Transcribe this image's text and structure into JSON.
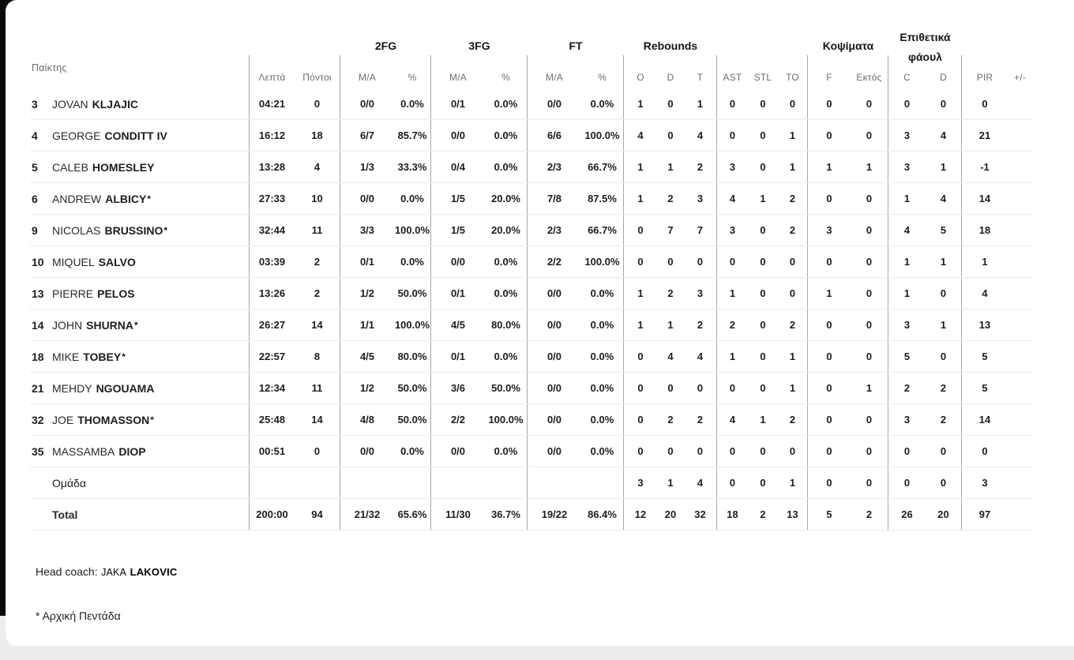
{
  "colors": {
    "card_bg": "#ffffff",
    "page_bg": "#ededed",
    "left_panel": "#0a0a0a",
    "header_text": "#6d6d6d",
    "data_text": "#1d1d1d",
    "row_divider": "#eaeaea",
    "column_separator": "#a6a6a6"
  },
  "table": {
    "groups": {
      "fg2": "2FG",
      "fg3": "3FG",
      "ft": "FT",
      "rebounds": "Rebounds",
      "blocks": "Κοψίματα",
      "fouls_line1": "Επιθετικά",
      "fouls_line2": "φάουλ"
    },
    "subheaders": {
      "player": "Παίκτης",
      "min": "Λεπτά",
      "pts": "Πόντοι",
      "ma": "M/A",
      "pct": "%",
      "reb_o": "O",
      "reb_d": "D",
      "reb_t": "T",
      "ast": "AST",
      "stl": "STL",
      "to": "TO",
      "blk_f": "F",
      "blk_against": "Εκτός",
      "foul_c": "C",
      "foul_d": "D",
      "pir": "PIR",
      "plusminus": "+/-"
    },
    "rows": [
      {
        "type": "player",
        "num": "3",
        "first": "JOVAN",
        "last": "KLJAJIC",
        "star": false,
        "min": "04:21",
        "pts": "0",
        "fg2": "0/0",
        "fg2p": "0.0%",
        "fg3": "0/1",
        "fg3p": "0.0%",
        "ft": "0/0",
        "ftp": "0.0%",
        "ro": "1",
        "rd": "0",
        "rt": "1",
        "ast": "0",
        "stl": "0",
        "to": "0",
        "f": "0",
        "ektos": "0",
        "c": "0",
        "d": "0",
        "pir": "0",
        "pm": ""
      },
      {
        "type": "player",
        "num": "4",
        "first": "GEORGE",
        "last": "CONDITT IV",
        "star": false,
        "min": "16:12",
        "pts": "18",
        "fg2": "6/7",
        "fg2p": "85.7%",
        "fg3": "0/0",
        "fg3p": "0.0%",
        "ft": "6/6",
        "ftp": "100.0%",
        "ro": "4",
        "rd": "0",
        "rt": "4",
        "ast": "0",
        "stl": "0",
        "to": "1",
        "f": "0",
        "ektos": "0",
        "c": "3",
        "d": "4",
        "pir": "21",
        "pm": ""
      },
      {
        "type": "player",
        "num": "5",
        "first": "CALEB",
        "last": "HOMESLEY",
        "star": false,
        "min": "13:28",
        "pts": "4",
        "fg2": "1/3",
        "fg2p": "33.3%",
        "fg3": "0/4",
        "fg3p": "0.0%",
        "ft": "2/3",
        "ftp": "66.7%",
        "ro": "1",
        "rd": "1",
        "rt": "2",
        "ast": "3",
        "stl": "0",
        "to": "1",
        "f": "1",
        "ektos": "1",
        "c": "3",
        "d": "1",
        "pir": "-1",
        "pm": ""
      },
      {
        "type": "player",
        "num": "6",
        "first": "ANDREW",
        "last": "ALBICY",
        "star": true,
        "min": "27:33",
        "pts": "10",
        "fg2": "0/0",
        "fg2p": "0.0%",
        "fg3": "1/5",
        "fg3p": "20.0%",
        "ft": "7/8",
        "ftp": "87.5%",
        "ro": "1",
        "rd": "2",
        "rt": "3",
        "ast": "4",
        "stl": "1",
        "to": "2",
        "f": "0",
        "ektos": "0",
        "c": "1",
        "d": "4",
        "pir": "14",
        "pm": ""
      },
      {
        "type": "player",
        "num": "9",
        "first": "NICOLAS",
        "last": "BRUSSINO",
        "star": true,
        "min": "32:44",
        "pts": "11",
        "fg2": "3/3",
        "fg2p": "100.0%",
        "fg3": "1/5",
        "fg3p": "20.0%",
        "ft": "2/3",
        "ftp": "66.7%",
        "ro": "0",
        "rd": "7",
        "rt": "7",
        "ast": "3",
        "stl": "0",
        "to": "2",
        "f": "3",
        "ektos": "0",
        "c": "4",
        "d": "5",
        "pir": "18",
        "pm": ""
      },
      {
        "type": "player",
        "num": "10",
        "first": "MIQUEL",
        "last": "SALVO",
        "star": false,
        "min": "03:39",
        "pts": "2",
        "fg2": "0/1",
        "fg2p": "0.0%",
        "fg3": "0/0",
        "fg3p": "0.0%",
        "ft": "2/2",
        "ftp": "100.0%",
        "ro": "0",
        "rd": "0",
        "rt": "0",
        "ast": "0",
        "stl": "0",
        "to": "0",
        "f": "0",
        "ektos": "0",
        "c": "1",
        "d": "1",
        "pir": "1",
        "pm": ""
      },
      {
        "type": "player",
        "num": "13",
        "first": "PIERRE",
        "last": "PELOS",
        "star": false,
        "min": "13:26",
        "pts": "2",
        "fg2": "1/2",
        "fg2p": "50.0%",
        "fg3": "0/1",
        "fg3p": "0.0%",
        "ft": "0/0",
        "ftp": "0.0%",
        "ro": "1",
        "rd": "2",
        "rt": "3",
        "ast": "1",
        "stl": "0",
        "to": "0",
        "f": "1",
        "ektos": "0",
        "c": "1",
        "d": "0",
        "pir": "4",
        "pm": ""
      },
      {
        "type": "player",
        "num": "14",
        "first": "JOHN",
        "last": "SHURNA",
        "star": true,
        "min": "26:27",
        "pts": "14",
        "fg2": "1/1",
        "fg2p": "100.0%",
        "fg3": "4/5",
        "fg3p": "80.0%",
        "ft": "0/0",
        "ftp": "0.0%",
        "ro": "1",
        "rd": "1",
        "rt": "2",
        "ast": "2",
        "stl": "0",
        "to": "2",
        "f": "0",
        "ektos": "0",
        "c": "3",
        "d": "1",
        "pir": "13",
        "pm": ""
      },
      {
        "type": "player",
        "num": "18",
        "first": "MIKE",
        "last": "TOBEY",
        "star": true,
        "min": "22:57",
        "pts": "8",
        "fg2": "4/5",
        "fg2p": "80.0%",
        "fg3": "0/1",
        "fg3p": "0.0%",
        "ft": "0/0",
        "ftp": "0.0%",
        "ro": "0",
        "rd": "4",
        "rt": "4",
        "ast": "1",
        "stl": "0",
        "to": "1",
        "f": "0",
        "ektos": "0",
        "c": "5",
        "d": "0",
        "pir": "5",
        "pm": ""
      },
      {
        "type": "player",
        "num": "21",
        "first": "MEHDY",
        "last": "NGOUAMA",
        "star": false,
        "min": "12:34",
        "pts": "11",
        "fg2": "1/2",
        "fg2p": "50.0%",
        "fg3": "3/6",
        "fg3p": "50.0%",
        "ft": "0/0",
        "ftp": "0.0%",
        "ro": "0",
        "rd": "0",
        "rt": "0",
        "ast": "0",
        "stl": "0",
        "to": "1",
        "f": "0",
        "ektos": "1",
        "c": "2",
        "d": "2",
        "pir": "5",
        "pm": ""
      },
      {
        "type": "player",
        "num": "32",
        "first": "JOE",
        "last": "THOMASSON",
        "star": true,
        "min": "25:48",
        "pts": "14",
        "fg2": "4/8",
        "fg2p": "50.0%",
        "fg3": "2/2",
        "fg3p": "100.0%",
        "ft": "0/0",
        "ftp": "0.0%",
        "ro": "0",
        "rd": "2",
        "rt": "2",
        "ast": "4",
        "stl": "1",
        "to": "2",
        "f": "0",
        "ektos": "0",
        "c": "3",
        "d": "2",
        "pir": "14",
        "pm": ""
      },
      {
        "type": "player",
        "num": "35",
        "first": "MASSAMBA",
        "last": "DIOP",
        "star": false,
        "min": "00:51",
        "pts": "0",
        "fg2": "0/0",
        "fg2p": "0.0%",
        "fg3": "0/0",
        "fg3p": "0.0%",
        "ft": "0/0",
        "ftp": "0.0%",
        "ro": "0",
        "rd": "0",
        "rt": "0",
        "ast": "0",
        "stl": "0",
        "to": "0",
        "f": "0",
        "ektos": "0",
        "c": "0",
        "d": "0",
        "pir": "0",
        "pm": ""
      },
      {
        "type": "team",
        "label": "Ομάδα",
        "min": "",
        "pts": "",
        "fg2": "",
        "fg2p": "",
        "fg3": "",
        "fg3p": "",
        "ft": "",
        "ftp": "",
        "ro": "3",
        "rd": "1",
        "rt": "4",
        "ast": "0",
        "stl": "0",
        "to": "1",
        "f": "0",
        "ektos": "0",
        "c": "0",
        "d": "0",
        "pir": "3",
        "pm": ""
      },
      {
        "type": "total",
        "label": "Total",
        "min": "200:00",
        "pts": "94",
        "fg2": "21/32",
        "fg2p": "65.6%",
        "fg3": "11/30",
        "fg3p": "36.7%",
        "ft": "19/22",
        "ftp": "86.4%",
        "ro": "12",
        "rd": "20",
        "rt": "32",
        "ast": "18",
        "stl": "2",
        "to": "13",
        "f": "5",
        "ektos": "2",
        "c": "26",
        "d": "20",
        "pir": "97",
        "pm": ""
      }
    ]
  },
  "footer": {
    "head_coach_label": "Head coach:",
    "coach_first_name": "JAKA",
    "coach_last_name": "LAKOVIC",
    "starters_note": "* Αρχική Πεντάδα"
  }
}
